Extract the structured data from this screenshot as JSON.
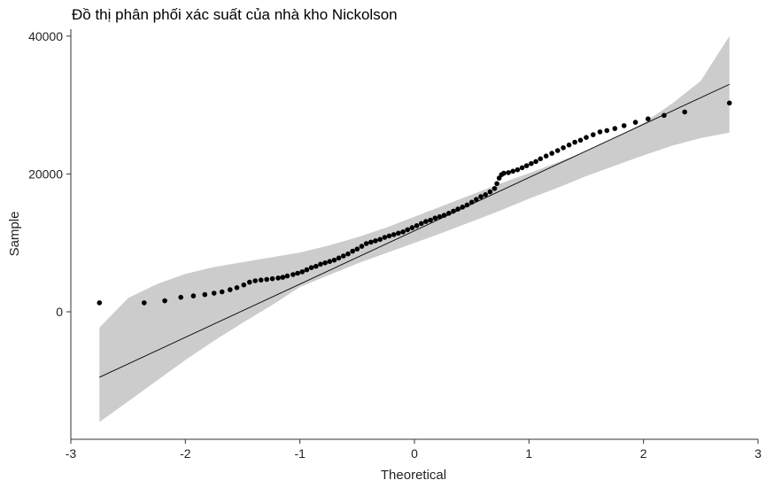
{
  "chart_data": {
    "type": "scatter",
    "title": "Đồ thị phân phối xác suất của nhà kho Nickolson",
    "xlabel": "Theoretical",
    "ylabel": "Sample",
    "xlim": [
      -3.0,
      3.0
    ],
    "ylim": [
      -18500,
      41000
    ],
    "x_ticks": [
      -3,
      -2,
      -1,
      0,
      1,
      2,
      3
    ],
    "x_tick_labels": [
      "-3",
      "-2",
      "-1",
      "0",
      "1",
      "2",
      "3"
    ],
    "y_ticks": [
      0,
      20000,
      40000
    ],
    "y_tick_labels": [
      "0",
      "20000",
      "40000"
    ],
    "grid": false,
    "reference_line": {
      "x": [
        -2.75,
        2.75
      ],
      "y": [
        -9500,
        33000
      ]
    },
    "confidence_band": {
      "x": [
        -2.75,
        -2.5,
        -2.25,
        -2.0,
        -1.75,
        -1.5,
        -1.25,
        -1.0,
        -0.75,
        -0.5,
        -0.25,
        0.0,
        0.25,
        0.5,
        0.75,
        1.0,
        1.25,
        1.5,
        1.75,
        2.0,
        2.25,
        2.5,
        2.75
      ],
      "upper": [
        -2300,
        2000,
        4000,
        5500,
        6500,
        7200,
        7900,
        8600,
        9600,
        10800,
        12200,
        13800,
        15400,
        17000,
        18600,
        20100,
        21700,
        23300,
        25200,
        27400,
        30200,
        33500,
        40000
      ],
      "lower": [
        -16000,
        -13000,
        -10000,
        -7000,
        -4200,
        -1600,
        900,
        3600,
        5300,
        7000,
        8500,
        10000,
        11500,
        13100,
        14700,
        16400,
        18000,
        19700,
        21200,
        22700,
        24100,
        25200,
        26000
      ]
    },
    "points": {
      "x": [
        -2.75,
        -2.36,
        -2.18,
        -2.04,
        -1.93,
        -1.83,
        -1.75,
        -1.68,
        -1.61,
        -1.55,
        -1.49,
        -1.44,
        -1.39,
        -1.34,
        -1.29,
        -1.24,
        -1.19,
        -1.15,
        -1.11,
        -1.06,
        -1.02,
        -0.98,
        -0.94,
        -0.9,
        -0.86,
        -0.82,
        -0.78,
        -0.74,
        -0.7,
        -0.66,
        -0.62,
        -0.58,
        -0.54,
        -0.5,
        -0.46,
        -0.42,
        -0.38,
        -0.34,
        -0.3,
        -0.26,
        -0.22,
        -0.18,
        -0.14,
        -0.1,
        -0.06,
        -0.02,
        0.02,
        0.06,
        0.1,
        0.14,
        0.18,
        0.22,
        0.26,
        0.3,
        0.34,
        0.38,
        0.42,
        0.46,
        0.5,
        0.54,
        0.58,
        0.62,
        0.66,
        0.7,
        0.72,
        0.74,
        0.76,
        0.78,
        0.82,
        0.86,
        0.9,
        0.94,
        0.98,
        1.02,
        1.06,
        1.1,
        1.15,
        1.2,
        1.25,
        1.3,
        1.35,
        1.4,
        1.45,
        1.5,
        1.56,
        1.62,
        1.68,
        1.75,
        1.83,
        1.93,
        2.04,
        2.18,
        2.36,
        2.75
      ],
      "y": [
        1300,
        1300,
        1600,
        2100,
        2300,
        2500,
        2700,
        2900,
        3200,
        3500,
        3900,
        4300,
        4500,
        4600,
        4700,
        4800,
        4900,
        5000,
        5200,
        5400,
        5600,
        5800,
        6100,
        6400,
        6600,
        6900,
        7100,
        7300,
        7500,
        7800,
        8100,
        8400,
        8800,
        9100,
        9500,
        9900,
        10100,
        10300,
        10500,
        10800,
        11000,
        11200,
        11400,
        11600,
        11900,
        12200,
        12500,
        12800,
        13100,
        13300,
        13600,
        13800,
        14000,
        14300,
        14600,
        14900,
        15200,
        15500,
        15900,
        16300,
        16700,
        17000,
        17400,
        17900,
        18600,
        19400,
        19900,
        20100,
        20200,
        20400,
        20600,
        20900,
        21200,
        21500,
        21800,
        22200,
        22600,
        23000,
        23400,
        23800,
        24200,
        24600,
        24900,
        25300,
        25700,
        26100,
        26300,
        26600,
        27000,
        27500,
        28000,
        28500,
        29000,
        30300
      ]
    }
  }
}
